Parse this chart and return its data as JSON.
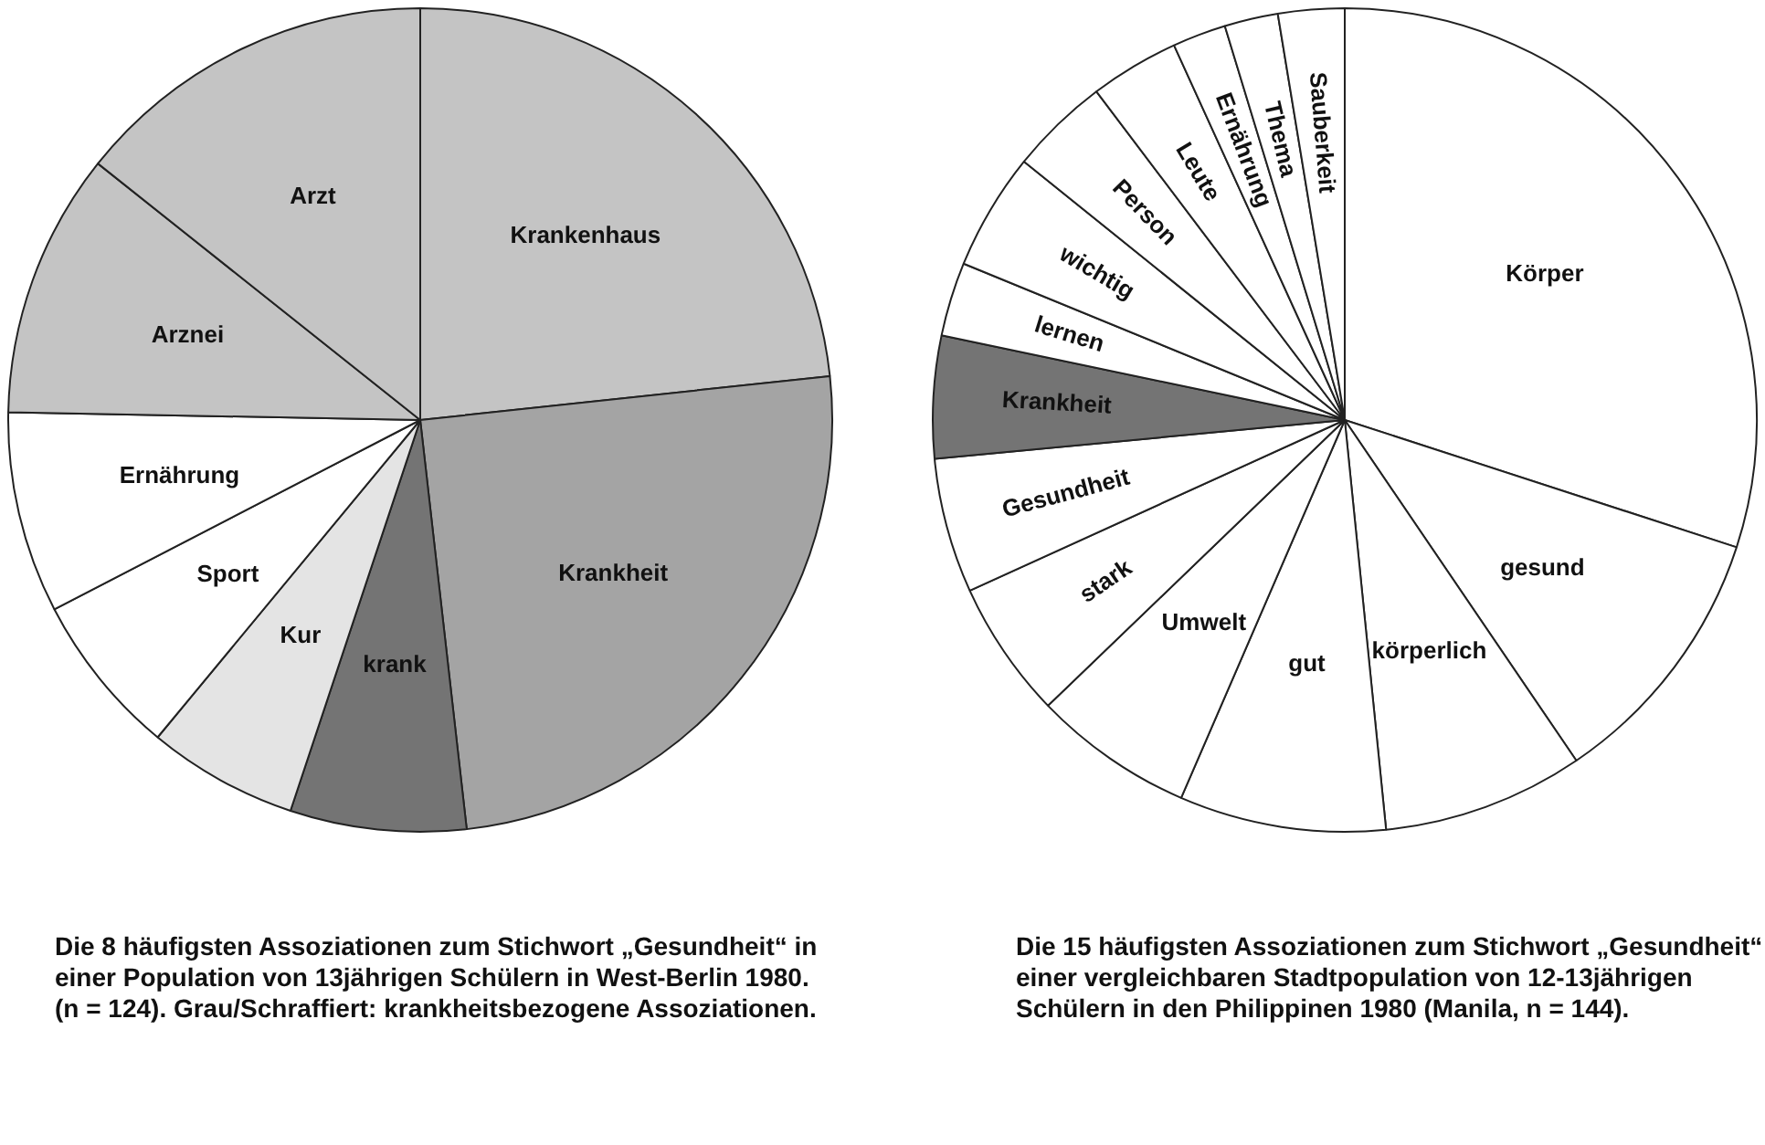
{
  "chart_data": [
    {
      "type": "pie",
      "categories": [
        "Krankenhaus",
        "Krankheit",
        "krank",
        "Kur",
        "Sport",
        "Ernährung",
        "Arznei",
        "Arzt"
      ],
      "values": [
        23.3,
        24.9,
        6.9,
        5.9,
        6.4,
        7.9,
        10.4,
        14.3
      ],
      "colors": [
        "#c4c4c4",
        "#a4a4a4",
        "#747474",
        "#e4e4e4",
        "#ffffff",
        "#ffffff",
        "#c4c4c4",
        "#c4c4c4"
      ],
      "legend": false,
      "annotations": [
        "Die 8 häufigsten Assoziationen zum Stichwort „Gesundheit“ in einer Population von 13jährigen Schülern in West-Berlin 1980. (n = 124). Grau/Schraffiert: krankheitsbezogene Assoziationen."
      ]
    },
    {
      "type": "pie",
      "categories": [
        "Körper",
        "gesund",
        "körperlich",
        "gut",
        "Umwelt",
        "stark",
        "Gesundheit",
        "Krankheit",
        "lernen",
        "wichtig",
        "Person",
        "Leute",
        "Ernährung",
        "Thema",
        "Sauberkeit"
      ],
      "values": [
        30.0,
        10.5,
        7.9,
        8.1,
        6.3,
        5.4,
        5.3,
        4.8,
        2.9,
        4.6,
        3.9,
        3.5,
        2.1,
        2.1,
        2.6
      ],
      "colors": [
        "#ffffff",
        "#ffffff",
        "#ffffff",
        "#ffffff",
        "#ffffff",
        "#ffffff",
        "#ffffff",
        "#747474",
        "#ffffff",
        "#ffffff",
        "#ffffff",
        "#ffffff",
        "#ffffff",
        "#ffffff",
        "#ffffff"
      ],
      "legend": false,
      "annotations": [
        "Die 15 häufigsten Assoziationen zum Stichwort „Gesundheit“ einer vergleichbaren Stadtpopulation von 12-13jährigen Schülern in den Philippinen 1980 (Manila, n = 144)."
      ]
    }
  ]
}
